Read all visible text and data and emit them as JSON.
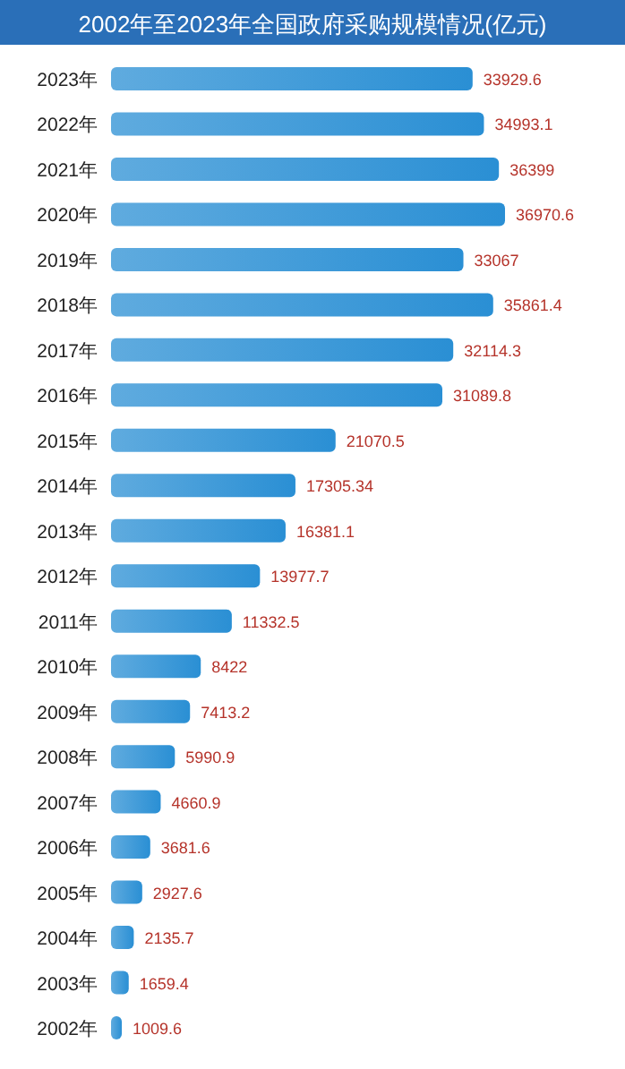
{
  "chart_data": {
    "type": "bar",
    "orientation": "horizontal",
    "title": "2002年至2023年全国政府采购规模情况(亿元)",
    "categories": [
      "2023年",
      "2022年",
      "2021年",
      "2020年",
      "2019年",
      "2018年",
      "2017年",
      "2016年",
      "2015年",
      "2014年",
      "2013年",
      "2012年",
      "2011年",
      "2010年",
      "2009年",
      "2008年",
      "2007年",
      "2006年",
      "2005年",
      "2004年",
      "2003年",
      "2002年"
    ],
    "values": [
      33929.6,
      34993.1,
      36399,
      36970.6,
      33067,
      35861.4,
      32114.3,
      31089.8,
      21070.5,
      17305.34,
      16381.1,
      13977.7,
      11332.5,
      8422,
      7413.2,
      5990.9,
      4660.9,
      3681.6,
      2927.6,
      2135.7,
      1659.4,
      1009.6
    ],
    "value_labels": [
      "33929.6",
      "34993.1",
      "36399",
      "36970.6",
      "33067",
      "35861.4",
      "32114.3",
      "31089.8",
      "21070.5",
      "17305.34",
      "16381.1",
      "13977.7",
      "11332.5",
      "8422",
      "7413.2",
      "5990.9",
      "4660.9",
      "3681.6",
      "2927.6",
      "2135.7",
      "1659.4",
      "1009.6"
    ],
    "color": "#2a8fd4"
  }
}
